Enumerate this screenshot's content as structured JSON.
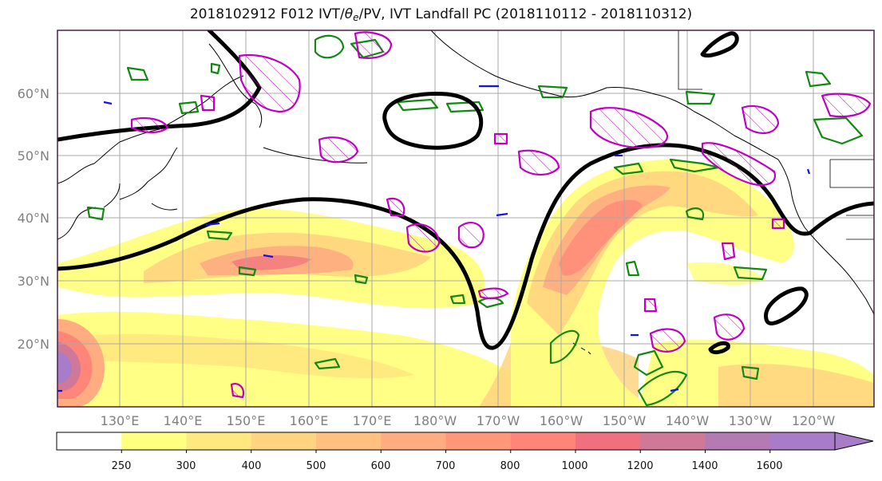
{
  "title": {
    "prefix": "2018102912 F012 IVT/",
    "theta": "θ",
    "theta_sub": "e",
    "suffix": "/PV, IVT Landfall PC (2018110112 - 2018110312)"
  },
  "map": {
    "lat_labels": [
      "20°N",
      "30°N",
      "40°N",
      "50°N",
      "60°N"
    ],
    "lat_values": [
      20,
      30,
      40,
      50,
      60
    ],
    "lon_labels": [
      "130°E",
      "140°E",
      "150°E",
      "160°E",
      "170°E",
      "180°W",
      "170°W",
      "160°W",
      "150°W",
      "140°W",
      "130°W",
      "120°W"
    ],
    "lon_values": [
      130,
      140,
      150,
      160,
      170,
      180,
      190,
      200,
      210,
      220,
      230,
      240
    ],
    "extent": {
      "lon": [
        120,
        250
      ],
      "lat": [
        10,
        70
      ]
    },
    "grid": true
  },
  "colorbar": {
    "labels": [
      "250",
      "300",
      "400",
      "500",
      "600",
      "700",
      "800",
      "1000",
      "1200",
      "1400",
      "1600"
    ],
    "colors": [
      "#ffffff",
      "#ffff80",
      "#ffe880",
      "#ffd480",
      "#ffc080",
      "#ffac80",
      "#ff9878",
      "#ff8578",
      "#f07080",
      "#d07898",
      "#b47ab4",
      "#a87cc8"
    ],
    "extend": "max"
  },
  "colors": {
    "theta_e": "#118811",
    "pv": "#c000c0",
    "pv_neg": "#1010ee",
    "landfall_pc": "#000000",
    "coast": "#000000",
    "grid": "#a8a8a8"
  }
}
